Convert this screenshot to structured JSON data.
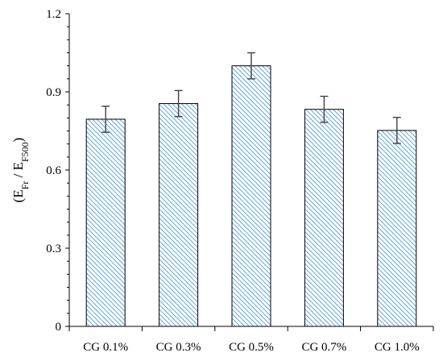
{
  "chart_data": {
    "type": "bar",
    "categories": [
      "CG 0.1%",
      "CG 0.3%",
      "CG 0.5%",
      "CG 0.7%",
      "CG 1.0%"
    ],
    "values": [
      0.795,
      0.855,
      1.0,
      0.833,
      0.752
    ],
    "error": [
      0.05,
      0.05,
      0.05,
      0.05,
      0.05
    ],
    "ylim": [
      0,
      1.2
    ],
    "yticks": [
      "0",
      "0.3",
      "0.6",
      "0.9",
      "1.2"
    ],
    "ylabel": {
      "open": "(E",
      "sub1": "Fr",
      "mid": " / E",
      "sub2": "F500",
      "close": ")"
    },
    "xlabel": "",
    "title": "",
    "grid": false,
    "legend": "none",
    "colors": {
      "bar_hatch": "#3a8fd1",
      "bar_outline": "#000000",
      "error_bar": "#404040"
    }
  }
}
